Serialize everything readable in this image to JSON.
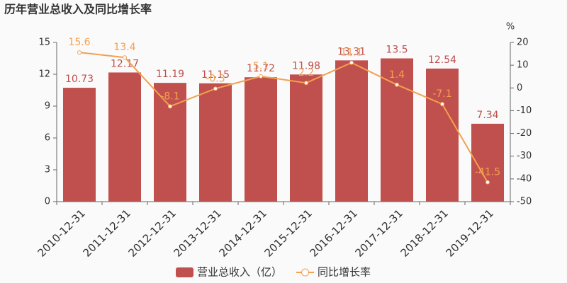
{
  "chart_data": {
    "type": "bar",
    "title": "历年营业总收入及同比增长率",
    "categories": [
      "2010-12-31",
      "2011-12-31",
      "2012-12-31",
      "2013-12-31",
      "2014-12-31",
      "2015-12-31",
      "2016-12-31",
      "2017-12-31",
      "2018-12-31",
      "2019-12-31"
    ],
    "series": [
      {
        "name": "营业总收入（亿）",
        "type": "bar",
        "color": "#c0504d",
        "values": [
          10.73,
          12.17,
          11.19,
          11.15,
          11.72,
          11.98,
          13.31,
          13.5,
          12.54,
          7.34
        ]
      },
      {
        "name": "同比增长率",
        "type": "line",
        "axis": "y2",
        "color": "#f3a04f",
        "values": [
          15.6,
          13.4,
          -8.1,
          -0.3,
          5.1,
          2.2,
          11.1,
          1.4,
          -7.1,
          -41.5
        ]
      }
    ],
    "ylim": [
      0,
      15
    ],
    "yticks": [
      0,
      3,
      6,
      9,
      12,
      15
    ],
    "y2label": "%",
    "y2lim": [
      -50,
      20
    ],
    "y2ticks": [
      -50,
      -40,
      -30,
      -20,
      -10,
      0,
      10,
      20
    ],
    "grid": false
  }
}
